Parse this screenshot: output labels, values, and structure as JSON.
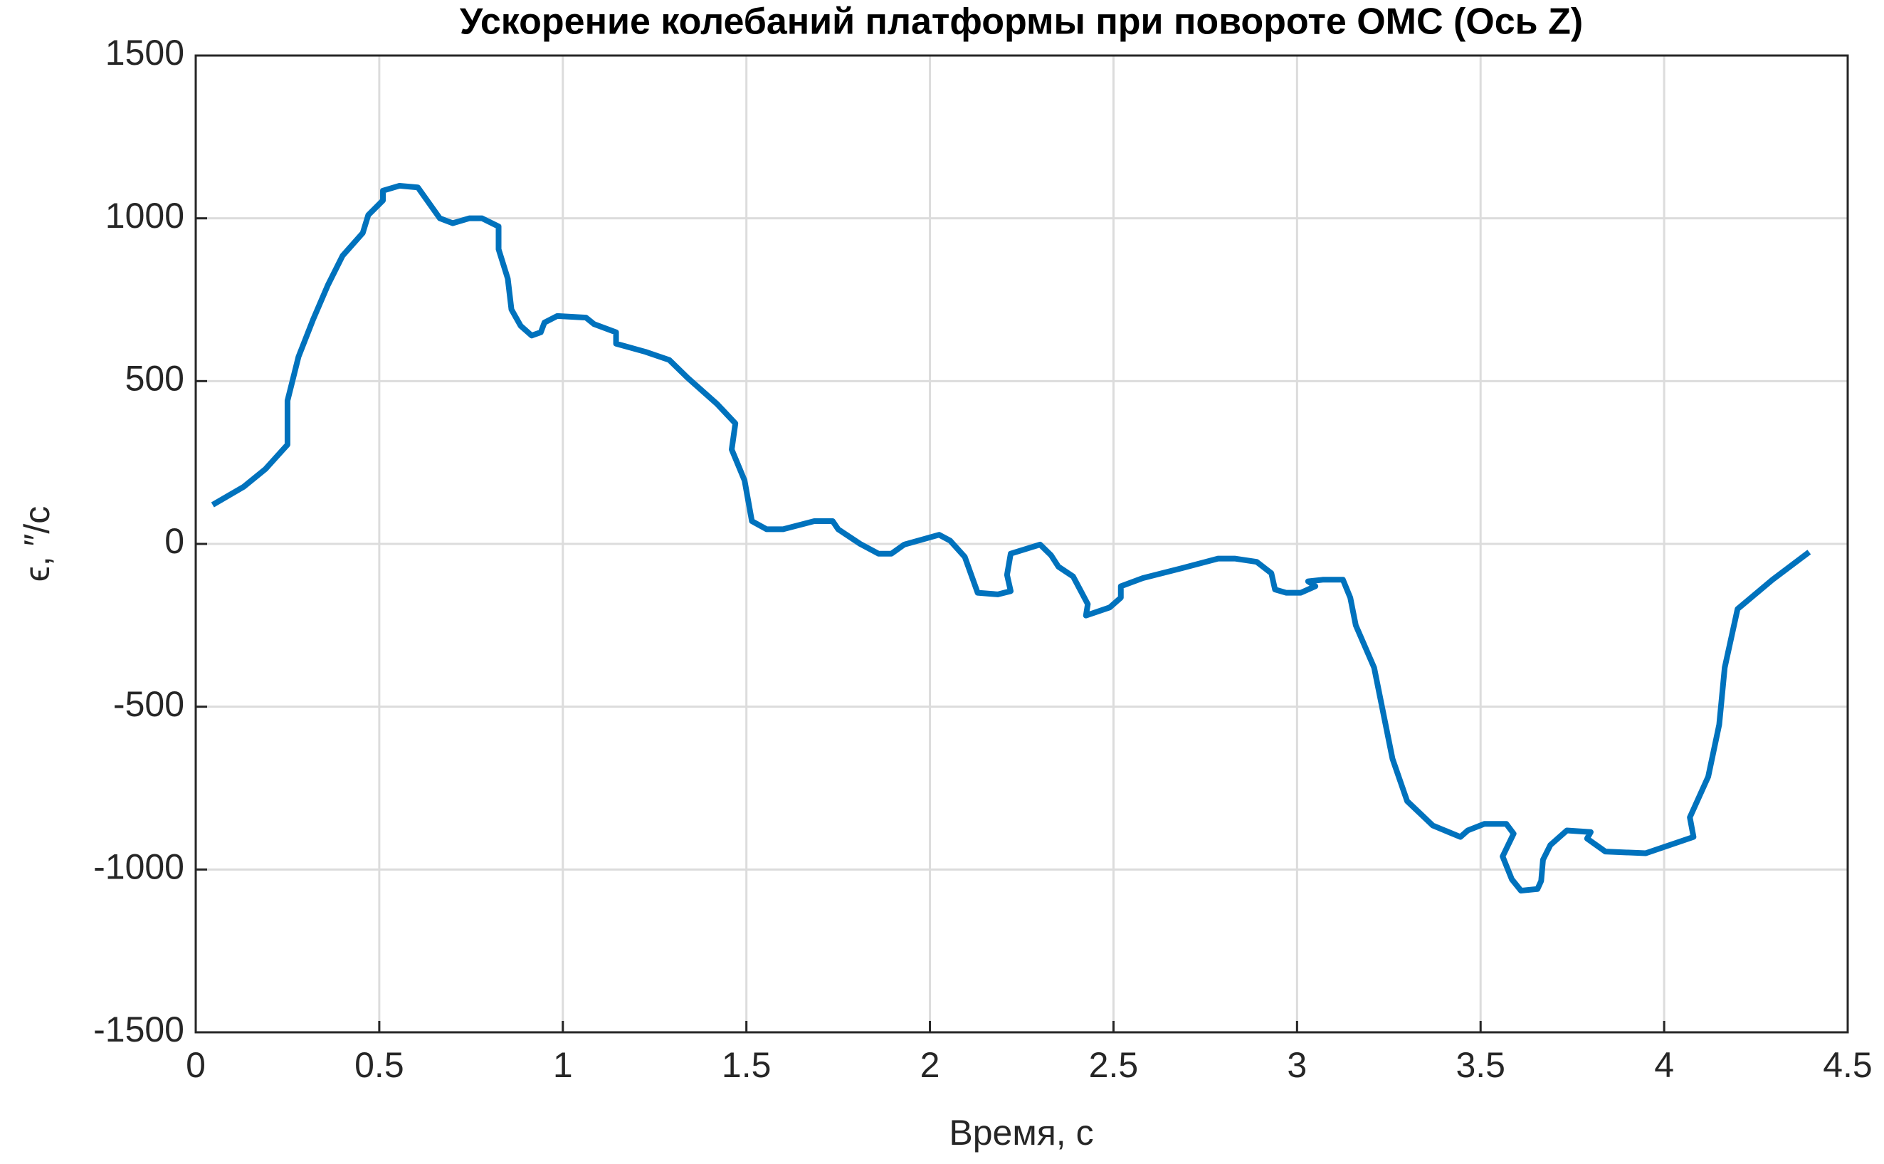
{
  "chart_data": {
    "type": "line",
    "title": "Ускорение колебаний платформы при повороте ОМС (Ось Z)",
    "x_label": "Время, с",
    "y_label": "ϵ, ″/с",
    "x": [
      0.046,
      0.13,
      0.19,
      0.25,
      0.25,
      0.28,
      0.32,
      0.36,
      0.4,
      0.455,
      0.47,
      0.51,
      0.51,
      0.555,
      0.605,
      0.665,
      0.7,
      0.745,
      0.78,
      0.825,
      0.825,
      0.85,
      0.86,
      0.885,
      0.915,
      0.94,
      0.95,
      0.985,
      1.063,
      1.085,
      1.145,
      1.145,
      1.225,
      1.29,
      1.34,
      1.42,
      1.47,
      1.46,
      1.495,
      1.515,
      1.555,
      1.6,
      1.685,
      1.735,
      1.75,
      1.81,
      1.86,
      1.895,
      1.93,
      2.025,
      2.055,
      2.095,
      2.13,
      2.185,
      2.22,
      2.21,
      2.22,
      2.3,
      2.33,
      2.35,
      2.39,
      2.43,
      2.425,
      2.49,
      2.52,
      2.52,
      2.58,
      2.685,
      2.785,
      2.83,
      2.89,
      2.93,
      2.94,
      2.97,
      3.01,
      3.05,
      3.03,
      3.07,
      3.125,
      3.145,
      3.16,
      3.21,
      3.26,
      3.3,
      3.37,
      3.445,
      3.465,
      3.51,
      3.57,
      3.59,
      3.56,
      3.585,
      3.61,
      3.655,
      3.665,
      3.67,
      3.69,
      3.735,
      3.8,
      3.79,
      3.84,
      3.95,
      4.08,
      4.07,
      4.12,
      4.15,
      4.165,
      4.2,
      4.295,
      4.395
    ],
    "series": [
      {
        "color": "#0072bd",
        "values": [
          120,
          175,
          230,
          305,
          440,
          575,
          690,
          795,
          885,
          955,
          1010,
          1055,
          1085,
          1100,
          1095,
          1000,
          985,
          1000,
          1000,
          975,
          905,
          815,
          720,
          670,
          640,
          650,
          680,
          700,
          695,
          675,
          650,
          615,
          590,
          565,
          510,
          430,
          370,
          290,
          195,
          70,
          45,
          45,
          70,
          70,
          45,
          0,
          -30,
          -30,
          -2,
          28,
          10,
          -40,
          -150,
          -155,
          -145,
          -95,
          -30,
          -2,
          -35,
          -70,
          -100,
          -185,
          -220,
          -195,
          -165,
          -130,
          -105,
          -75,
          -45,
          -45,
          -55,
          -90,
          -140,
          -150,
          -150,
          -130,
          -115,
          -110,
          -110,
          -165,
          -250,
          -380,
          -660,
          -790,
          -865,
          -900,
          -880,
          -860,
          -860,
          -890,
          -960,
          -1030,
          -1065,
          -1060,
          -1035,
          -970,
          -925,
          -880,
          -885,
          -905,
          -945,
          -950,
          -900,
          -840,
          -715,
          -555,
          -380,
          -200,
          -110,
          -25
        ]
      }
    ],
    "xlim": [
      0,
      4.5
    ],
    "xticks": [
      0,
      0.5,
      1,
      1.5,
      2,
      2.5,
      3,
      3.5,
      4,
      4.5
    ],
    "ylim": [
      -1500,
      1500
    ],
    "yticks": [
      -1500,
      -1000,
      -500,
      0,
      500,
      1000,
      1500
    ],
    "grid": true
  }
}
